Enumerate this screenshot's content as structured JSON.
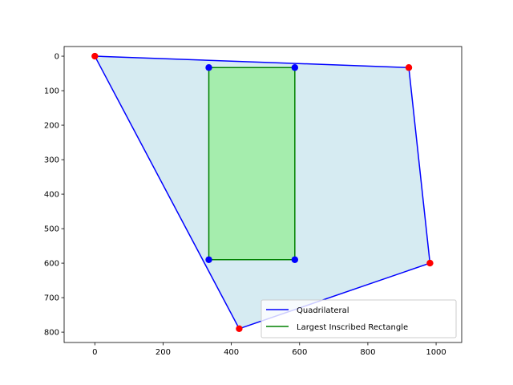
{
  "chart_data": {
    "type": "scatter",
    "title": "",
    "xlabel": "",
    "ylabel": "",
    "xlim": [
      -90,
      1075
    ],
    "ylim": [
      830,
      -28
    ],
    "y_inverted": true,
    "grid": false,
    "x_ticks": [
      0,
      200,
      400,
      600,
      800,
      1000
    ],
    "y_ticks": [
      0,
      100,
      200,
      300,
      400,
      500,
      600,
      700,
      800
    ],
    "legend_position": "lower-right",
    "series": [
      {
        "name": "Quadrilateral",
        "kind": "polygon",
        "line_color": "#0000ff",
        "fill_color": "#add8e6",
        "fill_alpha": 0.5,
        "marker_color": "#ff0000",
        "points": [
          [
            0,
            0
          ],
          [
            920,
            33
          ],
          [
            982,
            600
          ],
          [
            423,
            790
          ]
        ]
      },
      {
        "name": "Largest Inscribed Rectangle",
        "kind": "polygon",
        "line_color": "#008000",
        "fill_color": "#90ee90",
        "fill_alpha": 0.7,
        "marker_color": "#0000ff",
        "points": [
          [
            334,
            33
          ],
          [
            586,
            33
          ],
          [
            586,
            590
          ],
          [
            334,
            590
          ]
        ]
      }
    ]
  }
}
